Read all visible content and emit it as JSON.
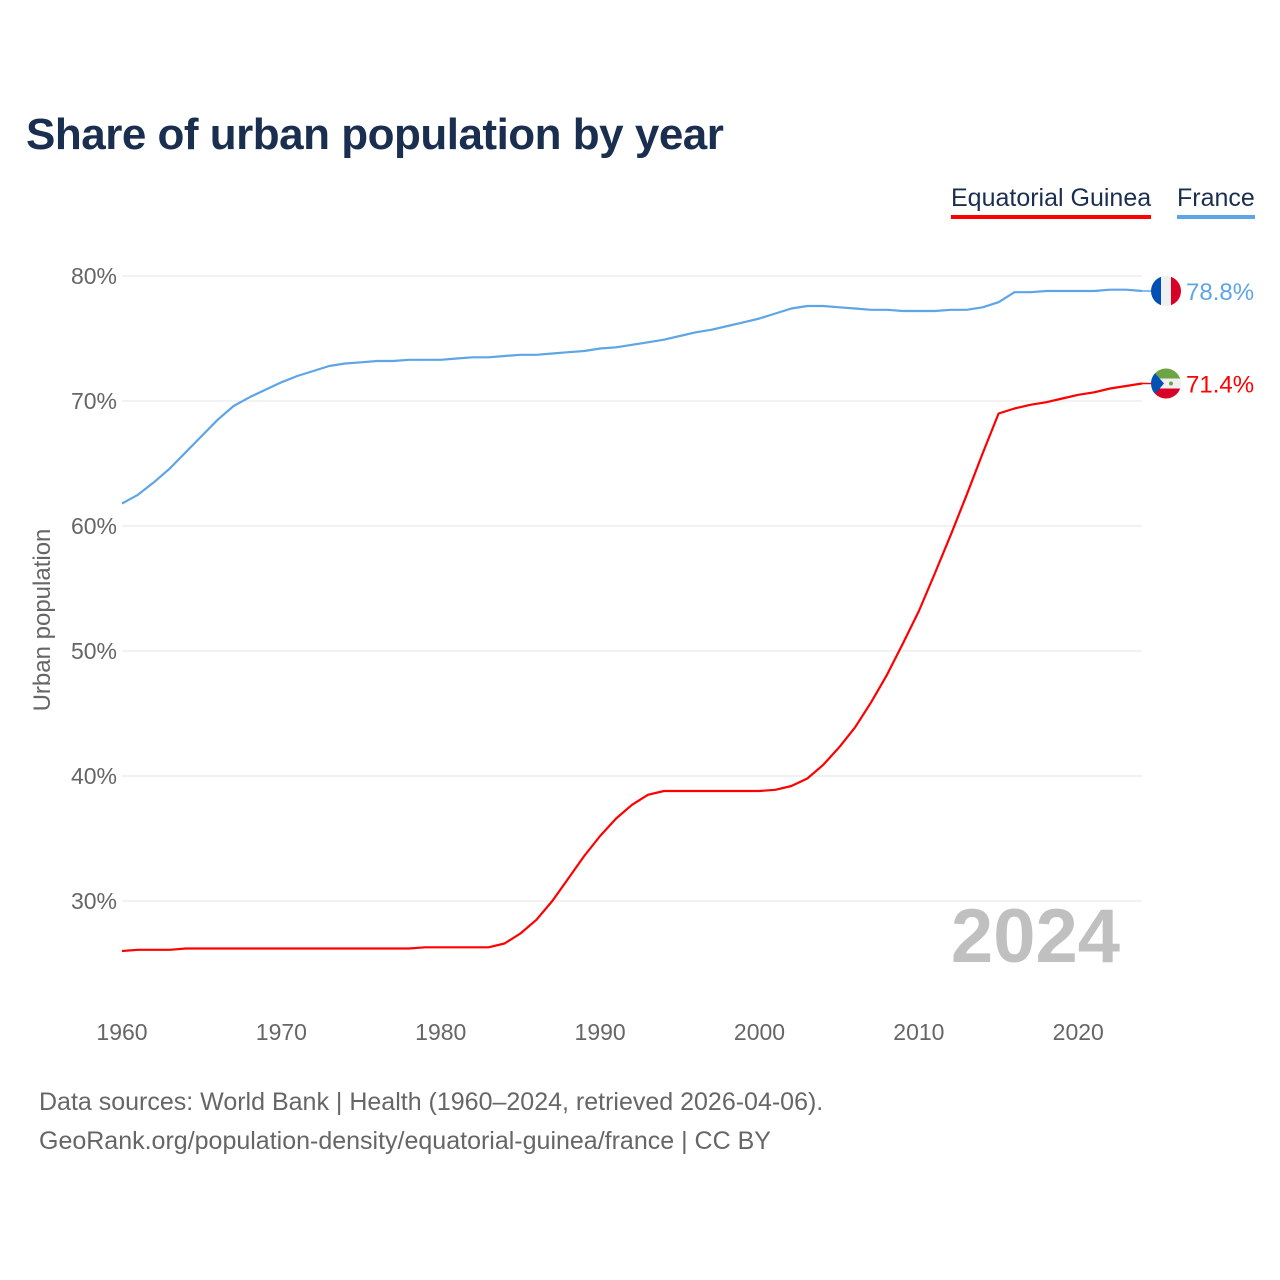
{
  "chart_data": {
    "type": "line",
    "title": "Share of urban population by year",
    "xlabel": "",
    "ylabel": "Urban population",
    "xlim": [
      1960,
      2024
    ],
    "ylim": [
      22,
      84
    ],
    "yticks": [
      30,
      40,
      50,
      60,
      70,
      80
    ],
    "ytick_labels": [
      "30%",
      "40%",
      "50%",
      "60%",
      "70%",
      "80%"
    ],
    "xticks": [
      1960,
      1970,
      1980,
      1990,
      2000,
      2010,
      2020
    ],
    "xtick_labels": [
      "1960",
      "1970",
      "1980",
      "1990",
      "2000",
      "2010",
      "2020"
    ],
    "grid": true,
    "legend_position": "top-right",
    "year_watermark": "2024",
    "x_start": 1960,
    "series": [
      {
        "name": "Equatorial Guinea",
        "color": "#ff0000",
        "end_label": "71.4%",
        "flag": "equatorial-guinea-flag",
        "values": [
          26.0,
          26.1,
          26.1,
          26.1,
          26.2,
          26.2,
          26.2,
          26.2,
          26.2,
          26.2,
          26.2,
          26.2,
          26.2,
          26.2,
          26.2,
          26.2,
          26.2,
          26.2,
          26.2,
          26.3,
          26.3,
          26.3,
          26.3,
          26.3,
          26.6,
          27.4,
          28.5,
          30.0,
          31.8,
          33.6,
          35.2,
          36.6,
          37.7,
          38.5,
          38.8,
          38.8,
          38.8,
          38.8,
          38.8,
          38.8,
          38.8,
          38.9,
          39.2,
          39.8,
          40.9,
          42.3,
          43.9,
          45.9,
          48.1,
          50.6,
          53.2,
          56.2,
          59.3,
          62.5,
          65.8,
          69.0,
          69.4,
          69.7,
          69.9,
          70.2,
          70.5,
          70.7,
          71.0,
          71.2,
          71.4
        ]
      },
      {
        "name": "France",
        "color": "#5ea5e8",
        "end_label": "78.8%",
        "flag": "france-flag",
        "values": [
          61.8,
          62.5,
          63.5,
          64.6,
          65.9,
          67.2,
          68.5,
          69.6,
          70.3,
          70.9,
          71.5,
          72.0,
          72.4,
          72.8,
          73.0,
          73.1,
          73.2,
          73.2,
          73.3,
          73.3,
          73.3,
          73.4,
          73.5,
          73.5,
          73.6,
          73.7,
          73.7,
          73.8,
          73.9,
          74.0,
          74.2,
          74.3,
          74.5,
          74.7,
          74.9,
          75.2,
          75.5,
          75.7,
          76.0,
          76.3,
          76.6,
          77.0,
          77.4,
          77.6,
          77.6,
          77.5,
          77.4,
          77.3,
          77.3,
          77.2,
          77.2,
          77.2,
          77.3,
          77.3,
          77.5,
          77.9,
          78.7,
          78.7,
          78.8,
          78.8,
          78.8,
          78.8,
          78.9,
          78.9,
          78.8
        ]
      }
    ]
  },
  "footer": {
    "sources": "Data sources: World Bank | Health (1960–2024, retrieved 2026-04-06).",
    "credit": "GeoRank.org/population-density/equatorial-guinea/france | CC BY"
  }
}
